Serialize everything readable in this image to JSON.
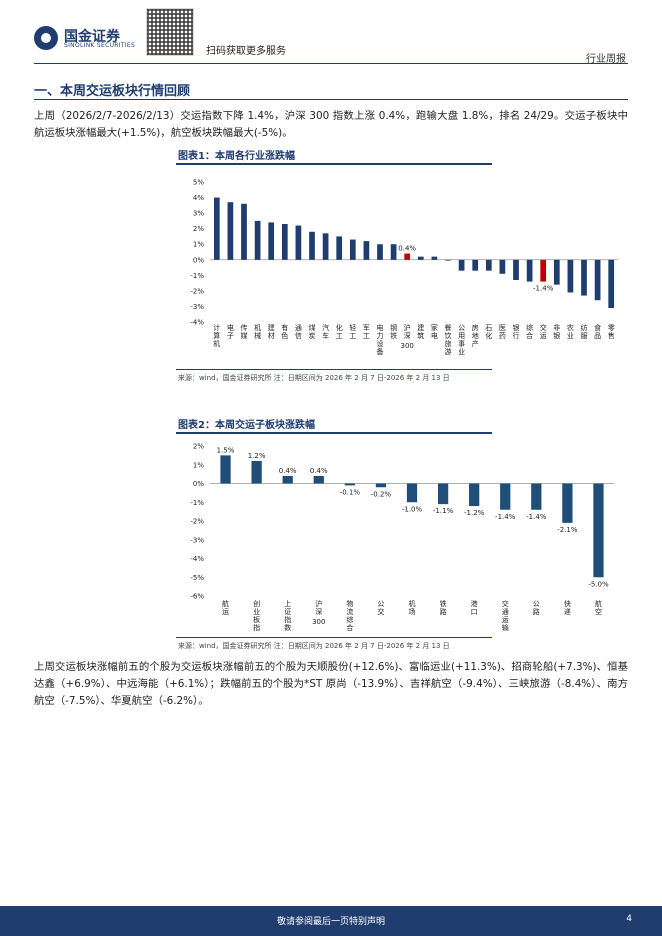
{
  "header": {
    "logo_cn": "国金证券",
    "logo_en": "SINOLINK SECURITIES",
    "qr_caption": "扫码获取更多服务",
    "doc_type": "行业周报"
  },
  "section": {
    "title": "一、本周交运板块行情回顾"
  },
  "paragraphs": {
    "p1": "上周（2026/2/7-2026/2/13）交运指数下降 1.4%，沪深 300 指数上涨 0.4%，跑输大盘 1.8%，排名 24/29。交运子板块中航运板块涨幅最大(+1.5%)，航空板块跌幅最大(-5%)。",
    "p2": "上周交运板块涨幅前五的个股为交运板块涨幅前五的个股为天顺股份(+12.6%)、富临运业(+11.3%)、招商轮船(+7.3%)、恒基达鑫（+6.9%）、中远海能（+6.1%）；跌幅前五的个股为*ST 原尚（-13.9%）、吉祥航空（-9.4%）、三峡旅游（-8.4%）、南方航空（-7.5%）、华夏航空（-6.2%）。"
  },
  "figure1": {
    "title": "图表1：本周各行业涨跌幅",
    "source": "来源：wind，国金证券研究所   注：日期区间为 2026 年 2 月 7 日-2026 年 2 月 13 日"
  },
  "figure2": {
    "title": "图表2：本周交运子板块涨跌幅",
    "source": "来源：wind，国金证券研究所   注：日期区间为 2026 年 2 月 7 日-2026 年 2 月 13 日"
  },
  "chart_data": [
    {
      "type": "bar",
      "categories": [
        "计算机",
        "电子",
        "传媒",
        "机械",
        "建材",
        "有色",
        "通信",
        "煤炭",
        "汽车",
        "化工",
        "轻工",
        "军工",
        "电力设备",
        "钢铁",
        "沪深300",
        "建筑",
        "家电",
        "餐饮旅游",
        "公用事业",
        "房地产",
        "石化",
        "医药",
        "银行",
        "综合",
        "交运",
        "非银",
        "农业",
        "纺服",
        "食品",
        "零售"
      ],
      "values": [
        4.0,
        3.7,
        3.6,
        2.5,
        2.4,
        2.3,
        2.2,
        1.8,
        1.7,
        1.5,
        1.3,
        1.2,
        1.0,
        1.0,
        0.4,
        0.2,
        0.2,
        0.0,
        -0.7,
        -0.7,
        -0.7,
        -0.9,
        -1.3,
        -1.4,
        -1.4,
        -1.6,
        -2.1,
        -2.3,
        -2.6,
        -3.1
      ],
      "highlight": [
        "沪深300",
        "交运"
      ],
      "data_labels": {
        "沪深300": "0.4%",
        "交运": "-1.4%"
      },
      "ylim": [
        -4,
        5
      ],
      "yticks": [
        "5%",
        "4%",
        "3%",
        "2%",
        "1%",
        "0%",
        "-1%",
        "-2%",
        "-3%",
        "-4%"
      ],
      "colors": {
        "default": "#1f3d6e",
        "highlight": "#c00000"
      }
    },
    {
      "type": "bar",
      "categories": [
        "航运",
        "创业板指",
        "上证指数",
        "沪深300",
        "物流综合",
        "公交",
        "机场",
        "铁路",
        "港口",
        "交通运输",
        "公路",
        "快递",
        "航空"
      ],
      "values": [
        1.5,
        1.2,
        0.4,
        0.4,
        -0.1,
        -0.2,
        -1.0,
        -1.1,
        -1.2,
        -1.4,
        -1.4,
        -2.1,
        -5.0
      ],
      "data_labels": [
        "1.5%",
        "1.2%",
        "0.4%",
        "0.4%",
        "-0.1%",
        "-0.2%",
        "-1.0%",
        "-1.1%",
        "-1.2%",
        "-1.4%",
        "-1.4%",
        "-2.1%",
        "-5.0%"
      ],
      "ylim": [
        -6,
        2
      ],
      "yticks": [
        "2%",
        "1%",
        "0%",
        "-1%",
        "-2%",
        "-3%",
        "-4%",
        "-5%",
        "-6%"
      ],
      "colors": {
        "default": "#1f4e79"
      }
    }
  ],
  "footer": {
    "disclaimer": "敬请参阅最后一页特别声明",
    "page": "4"
  }
}
